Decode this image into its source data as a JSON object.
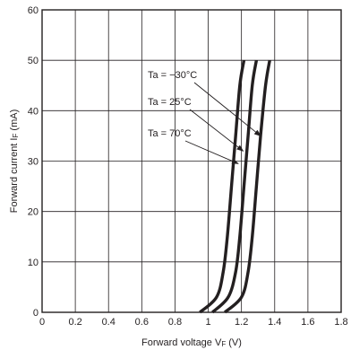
{
  "chart_data": {
    "type": "line",
    "title": "",
    "x_axis": {
      "label_main": "Forward voltage V",
      "label_sub": "F",
      "label_unit": " (V)",
      "range": [
        0,
        1.8
      ],
      "ticks": [
        0,
        0.2,
        0.4,
        0.6,
        0.8,
        1,
        1.2,
        1.4,
        1.6,
        1.8
      ],
      "tick_labels": [
        "0",
        "0.2",
        "0.4",
        "0.6",
        "0.8",
        "1",
        "1.2",
        "1.4",
        "1.6",
        "1.8"
      ]
    },
    "y_axis": {
      "label_main": "Forward current I",
      "label_sub": "F",
      "label_unit": " (mA)",
      "range": [
        0,
        60
      ],
      "ticks": [
        0,
        10,
        20,
        30,
        40,
        50,
        60
      ],
      "tick_labels": [
        "0",
        "10",
        "20",
        "30",
        "40",
        "50",
        "60"
      ]
    },
    "grid": true,
    "series": [
      {
        "name": "Ta = −30°C",
        "points": [
          [
            1.1,
            0
          ],
          [
            1.2,
            3
          ],
          [
            1.24,
            8
          ],
          [
            1.265,
            15
          ],
          [
            1.29,
            25
          ],
          [
            1.315,
            35
          ],
          [
            1.345,
            45
          ],
          [
            1.37,
            50
          ]
        ]
      },
      {
        "name": "Ta = 25°C",
        "points": [
          [
            1.025,
            0
          ],
          [
            1.12,
            3
          ],
          [
            1.165,
            8
          ],
          [
            1.19,
            15
          ],
          [
            1.215,
            25
          ],
          [
            1.24,
            35
          ],
          [
            1.265,
            45
          ],
          [
            1.29,
            50
          ]
        ]
      },
      {
        "name": "Ta = 70°C",
        "points": [
          [
            0.95,
            0
          ],
          [
            1.05,
            3
          ],
          [
            1.09,
            8
          ],
          [
            1.115,
            15
          ],
          [
            1.14,
            25
          ],
          [
            1.165,
            35
          ],
          [
            1.19,
            45
          ],
          [
            1.215,
            50
          ]
        ]
      }
    ],
    "annotations": [
      {
        "text": "Ta = −30°C",
        "series": 0,
        "target": [
          1.315,
          35
        ]
      },
      {
        "text": "Ta = 25°C",
        "series": 1,
        "target": [
          1.21,
          32
        ]
      },
      {
        "text": "Ta = 70°C",
        "series": 2,
        "target": [
          1.18,
          29.5
        ]
      }
    ]
  }
}
